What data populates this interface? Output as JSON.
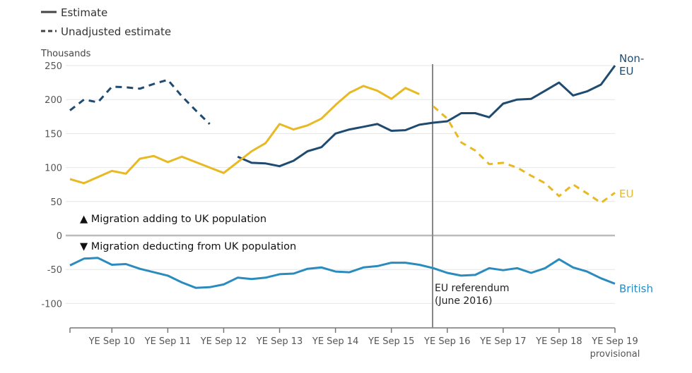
{
  "chart_data": {
    "type": "line",
    "ylabel": "Thousands",
    "ylim": [
      -137,
      250
    ],
    "yticks": [
      250,
      200,
      150,
      100,
      50,
      0,
      -50,
      -100
    ],
    "x_quarters_note": "quarter index 0 = YE Dec 09, 39 = YE Sep 19",
    "xticks": [
      {
        "q": 3,
        "label": "YE Sep 10"
      },
      {
        "q": 7,
        "label": "YE Sep 11"
      },
      {
        "q": 11,
        "label": "YE Sep 12"
      },
      {
        "q": 15,
        "label": "YE Sep 13"
      },
      {
        "q": 19,
        "label": "YE Sep 14"
      },
      {
        "q": 23,
        "label": "YE Sep 15"
      },
      {
        "q": 27,
        "label": "YE Sep 16"
      },
      {
        "q": 31,
        "label": "YE Sep 17"
      },
      {
        "q": 35,
        "label": "YE Sep 18"
      },
      {
        "q": 39,
        "label": "YE Sep 19",
        "sublabel": "provisional"
      }
    ],
    "legend": [
      {
        "label": "Estimate",
        "style": "solid"
      },
      {
        "label": "Unadjusted estimate",
        "style": "dashed"
      }
    ],
    "series": [
      {
        "name": "Non-EU",
        "label_lines": [
          "Non-",
          "EU"
        ],
        "color": "#1f4b70",
        "style": "dashed",
        "start": 0,
        "values": [
          184,
          200,
          196,
          219,
          218,
          216,
          223,
          229,
          205,
          184,
          164
        ]
      },
      {
        "name": "Non-EU",
        "color": "#1f4b70",
        "style": "solid",
        "start": 12,
        "values": [
          116,
          107,
          106,
          102,
          110,
          124,
          130,
          150,
          156,
          160,
          164,
          154,
          155,
          163,
          166,
          168,
          180,
          180,
          174,
          194,
          200,
          201,
          213,
          225,
          206,
          212,
          222,
          250
        ]
      },
      {
        "name": "EU",
        "color": "#e8b923",
        "style": "solid",
        "start": 0,
        "values": [
          83,
          77,
          86,
          95,
          91,
          113,
          117,
          108,
          116,
          108,
          100,
          92,
          108,
          124,
          136,
          164,
          156,
          162,
          172,
          192,
          210,
          220,
          213,
          201,
          217,
          208
        ]
      },
      {
        "name": "EU",
        "label_lines": [
          "EU"
        ],
        "color": "#e8b923",
        "style": "dashed",
        "start": 26,
        "values": [
          190,
          172,
          137,
          125,
          105,
          107,
          100,
          88,
          77,
          58,
          75,
          62,
          48,
          63
        ]
      },
      {
        "name": "British",
        "label_lines": [
          "British"
        ],
        "color": "#2a8bbf",
        "style": "solid",
        "start": 0,
        "values": [
          -44,
          -34,
          -33,
          -43,
          -42,
          -49,
          -54,
          -59,
          -69,
          -77,
          -76,
          -72,
          -62,
          -64,
          -62,
          -57,
          -56,
          -49,
          -47,
          -53,
          -54,
          -47,
          -45,
          -40,
          -40,
          -43,
          -48,
          -55,
          -59,
          -58,
          -48,
          -51,
          -48,
          -55,
          -48,
          -35,
          -47,
          -53,
          -63,
          -71
        ]
      }
    ],
    "annotations": {
      "above": "▲ Migration adding to UK population",
      "below": "▼ Migration deducting from UK population",
      "referendum": {
        "q": 26,
        "lines": [
          "EU referendum",
          "(June 2016)"
        ]
      }
    }
  }
}
